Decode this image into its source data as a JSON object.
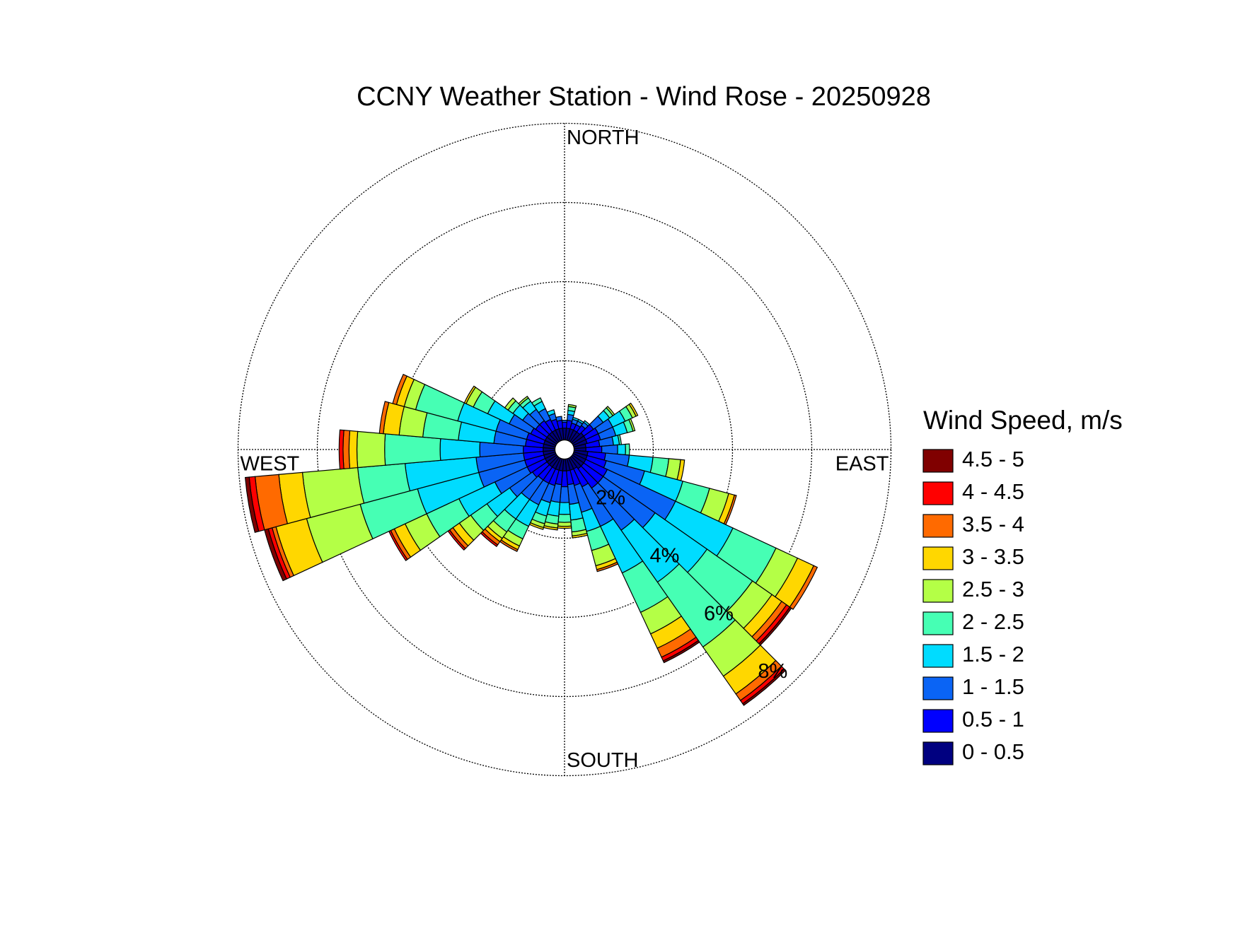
{
  "chart_data": {
    "type": "windrose",
    "title": "CCNY Weather Station - Wind Rose - 20250928",
    "legend_title": "Wind Speed, m/s",
    "x": [
      0,
      10,
      20,
      30,
      40,
      50,
      60,
      70,
      80,
      90,
      100,
      110,
      120,
      130,
      140,
      150,
      160,
      170,
      180,
      190,
      200,
      210,
      220,
      230,
      240,
      250,
      260,
      270,
      280,
      290,
      300,
      310,
      320,
      330,
      340,
      350
    ],
    "xlim": [
      0,
      360
    ],
    "xticks": [
      {
        "value": 0,
        "label": "NORTH"
      },
      {
        "value": 90,
        "label": "EAST"
      },
      {
        "value": 180,
        "label": "SOUTH"
      },
      {
        "value": 270,
        "label": "WEST"
      }
    ],
    "rlim": [
      0,
      8
    ],
    "rticks": [
      {
        "value": 2,
        "label": "2%"
      },
      {
        "value": 4,
        "label": "4%"
      },
      {
        "value": 6,
        "label": "6%"
      },
      {
        "value": 8,
        "label": "8%"
      }
    ],
    "series": [
      {
        "name": "0 - 0.5",
        "color": "#000080",
        "values": [
          0.3,
          0.3,
          0.3,
          0.3,
          0.3,
          0.35,
          0.35,
          0.35,
          0.3,
          0.3,
          0.35,
          0.35,
          0.35,
          0.35,
          0.35,
          0.3,
          0.3,
          0.3,
          0.3,
          0.3,
          0.3,
          0.3,
          0.3,
          0.3,
          0.3,
          0.3,
          0.3,
          0.3,
          0.3,
          0.3,
          0.3,
          0.3,
          0.3,
          0.3,
          0.3,
          0.3
        ]
      },
      {
        "name": "0.5 - 1",
        "color": "#0000ff",
        "values": [
          0.15,
          0.2,
          0.15,
          0.15,
          0.2,
          0.3,
          0.35,
          0.35,
          0.35,
          0.4,
          0.45,
          0.5,
          0.6,
          0.6,
          0.6,
          0.5,
          0.4,
          0.35,
          0.4,
          0.35,
          0.4,
          0.4,
          0.4,
          0.45,
          0.5,
          0.5,
          0.5,
          0.5,
          0.45,
          0.45,
          0.4,
          0.35,
          0.35,
          0.3,
          0.25,
          0.2
        ]
      },
      {
        "name": "1 - 1.5",
        "color": "#0a64f5",
        "values": [
          0.05,
          0.15,
          0.1,
          0.1,
          0.1,
          0.3,
          0.4,
          0.4,
          0.35,
          0.4,
          0.6,
          1.0,
          1.9,
          1.6,
          1.3,
          1.1,
          0.7,
          0.5,
          0.4,
          0.45,
          0.45,
          0.6,
          0.6,
          0.7,
          0.9,
          1.2,
          1.2,
          1.1,
          0.8,
          0.8,
          0.6,
          0.4,
          0.35,
          0.3,
          0.15,
          0.1
        ]
      },
      {
        "name": "1.5 - 2",
        "color": "#00dcff",
        "values": [
          0,
          0.1,
          0.05,
          0.05,
          0.05,
          0.2,
          0.35,
          0.3,
          0.15,
          0.2,
          0.6,
          1.0,
          1.6,
          1.6,
          1.6,
          1.3,
          0.5,
          0.4,
          0.3,
          0.35,
          0.35,
          0.6,
          0.6,
          0.7,
          1.0,
          1.6,
          1.8,
          1.0,
          0.9,
          1.0,
          0.6,
          0.3,
          0.25,
          0.2,
          0.1,
          0
        ]
      },
      {
        "name": "2 - 2.5",
        "color": "#46ffb4",
        "values": [
          0,
          0.1,
          0,
          0,
          0,
          0.1,
          0.2,
          0.15,
          0.05,
          0.1,
          0.4,
          0.7,
          1.2,
          1.4,
          2.0,
          1.1,
          0.5,
          0.3,
          0.2,
          0.2,
          0.2,
          0.35,
          0.4,
          0.5,
          0.9,
          1.5,
          1.2,
          1.4,
          0.9,
          1.1,
          0.4,
          0.15,
          0.1,
          0.1,
          0,
          0
        ]
      },
      {
        "name": "2.5 - 3",
        "color": "#b4ff46",
        "values": [
          0,
          0.05,
          0,
          0,
          0,
          0.05,
          0.1,
          0.05,
          0,
          0,
          0.3,
          0.5,
          0.6,
          0.6,
          0.9,
          0.6,
          0.4,
          0.1,
          0.1,
          0.1,
          0.1,
          0.2,
          0.2,
          0.35,
          0.6,
          1.4,
          1.4,
          0.7,
          0.6,
          0.3,
          0.2,
          0.1,
          0.05,
          0,
          0,
          0
        ]
      },
      {
        "name": "3 - 3.5",
        "color": "#ffd700",
        "values": [
          0,
          0,
          0,
          0,
          0,
          0,
          0.05,
          0,
          0,
          0,
          0.1,
          0.15,
          0.45,
          0.3,
          0.55,
          0.4,
          0.1,
          0.05,
          0.05,
          0.05,
          0.05,
          0.1,
          0.1,
          0.2,
          0.3,
          0.8,
          0.6,
          0.2,
          0.4,
          0.2,
          0.05,
          0,
          0,
          0,
          0,
          0
        ]
      },
      {
        "name": "3.5 - 4",
        "color": "#ff6a00",
        "values": [
          0,
          0,
          0,
          0,
          0,
          0,
          0,
          0,
          0,
          0,
          0,
          0.05,
          0.1,
          0.15,
          0.2,
          0.25,
          0.05,
          0,
          0,
          0,
          0,
          0.05,
          0.1,
          0.1,
          0.1,
          0.1,
          0.6,
          0.15,
          0.1,
          0.1,
          0,
          0,
          0,
          0,
          0,
          0
        ]
      },
      {
        "name": "4 - 4.5",
        "color": "#ff0000",
        "values": [
          0,
          0,
          0,
          0,
          0,
          0,
          0,
          0,
          0,
          0,
          0,
          0,
          0,
          0.1,
          0.1,
          0.1,
          0,
          0,
          0,
          0,
          0,
          0,
          0.05,
          0.05,
          0.05,
          0.1,
          0.15,
          0.1,
          0,
          0,
          0,
          0,
          0,
          0,
          0,
          0
        ]
      },
      {
        "name": "4.5 - 5",
        "color": "#800000",
        "values": [
          0,
          0,
          0,
          0,
          0,
          0,
          0,
          0,
          0,
          0,
          0,
          0,
          0,
          0.05,
          0.05,
          0.05,
          0,
          0,
          0,
          0,
          0,
          0,
          0,
          0,
          0,
          0.1,
          0.1,
          0,
          0,
          0,
          0,
          0,
          0,
          0,
          0,
          0
        ]
      }
    ]
  }
}
